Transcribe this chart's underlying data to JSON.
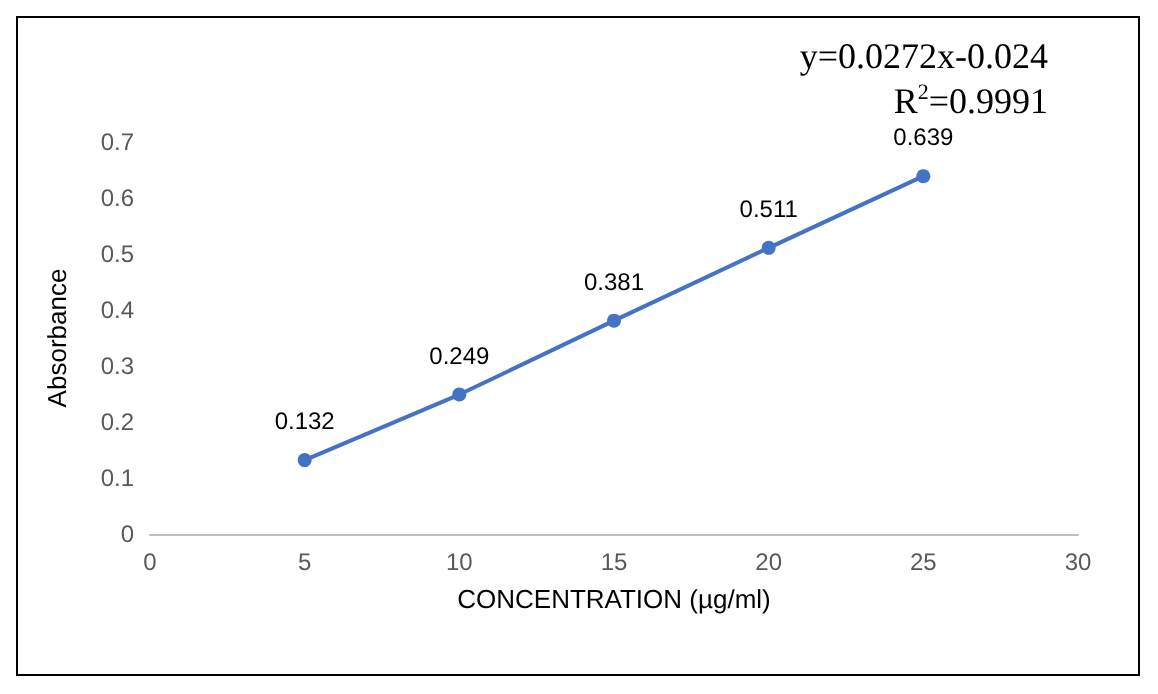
{
  "chart_data": {
    "type": "line",
    "xlabel": "CONCENTRATION (µg/ml)",
    "ylabel": "Absorbance",
    "x": [
      5,
      10,
      15,
      20,
      25
    ],
    "series": [
      {
        "color": "#4472c4",
        "values": [
          0.132,
          0.249,
          0.381,
          0.511,
          0.639
        ]
      }
    ],
    "xlim": [
      0,
      30
    ],
    "xticks": [
      0,
      5,
      10,
      15,
      20,
      25,
      30
    ],
    "ylim": [
      0,
      0.7
    ],
    "yticks": [
      0,
      0.1,
      0.2,
      0.3,
      0.4,
      0.5,
      0.6,
      0.7
    ],
    "marker": "circle",
    "line_style": "solid",
    "grid": false,
    "data_labels": true,
    "annotations": [
      "y=0.0272x-0.024",
      "R$^{2}$=0.9991"
    ]
  }
}
